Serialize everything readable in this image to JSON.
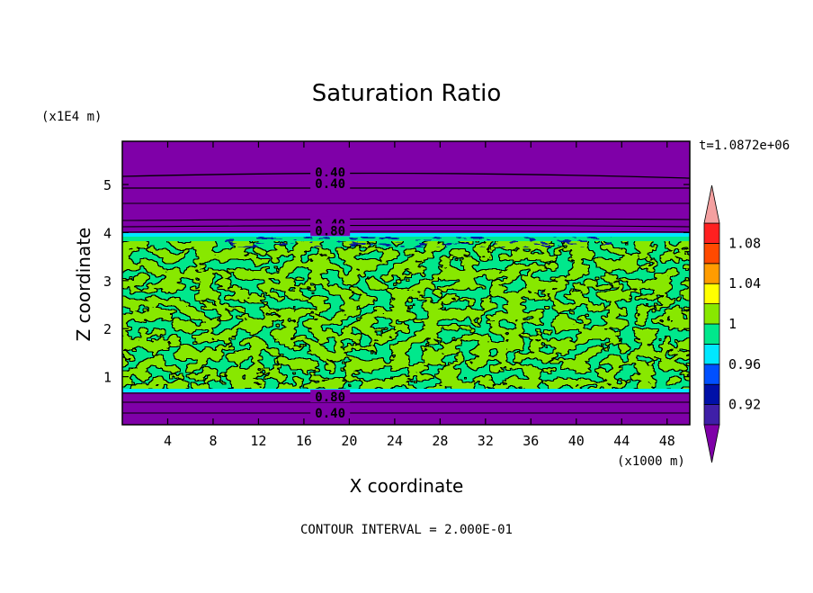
{
  "chart_data": {
    "type": "heatmap",
    "title": "Saturation Ratio",
    "xlabel": "X coordinate",
    "ylabel": "Z coordinate",
    "x_unit": "(x1000 m)",
    "y_unit": "(x1E4 m)",
    "time_label": "t=1.0872e+06",
    "footer": "CONTOUR INTERVAL = 2.000E-01",
    "xlim": [
      0,
      50
    ],
    "ylim": [
      0,
      5.9
    ],
    "x_ticks": [
      "4",
      "8",
      "12",
      "16",
      "20",
      "24",
      "28",
      "32",
      "36",
      "40",
      "44",
      "48"
    ],
    "x_tick_values": [
      4,
      8,
      12,
      16,
      20,
      24,
      28,
      32,
      36,
      40,
      44,
      48
    ],
    "y_ticks": [
      "1",
      "2",
      "3",
      "4",
      "5"
    ],
    "y_tick_values": [
      1,
      2,
      3,
      4,
      5
    ],
    "levels": [
      0.9,
      0.92,
      0.94,
      0.96,
      0.98,
      1.0,
      1.02,
      1.04,
      1.06,
      1.08,
      1.1
    ],
    "level_colors": [
      "#7f00a8",
      "#3f1fa8",
      "#0010a8",
      "#0050ff",
      "#00e8ff",
      "#00e88c",
      "#88e800",
      "#ffff00",
      "#ff9c00",
      "#ff4a00",
      "#ff2020",
      "#f4a0a0"
    ],
    "colorbar_labels": [
      "1.08",
      "1.04",
      "1",
      "0.96",
      "0.92"
    ],
    "colorbar_label_values": [
      1.08,
      1.04,
      1.0,
      0.96,
      0.92
    ],
    "contour_labels": [
      {
        "text": "0.40",
        "x": 18,
        "z": 5.25
      },
      {
        "text": "0.40",
        "x": 18,
        "z": 5.02
      },
      {
        "text": "0.40",
        "x": 18,
        "z": 4.18
      },
      {
        "text": "0.80",
        "x": 18,
        "z": 4.04
      },
      {
        "text": "0.80",
        "x": 18,
        "z": 0.58
      },
      {
        "text": "0.40",
        "x": 18,
        "z": 0.24
      }
    ]
  }
}
